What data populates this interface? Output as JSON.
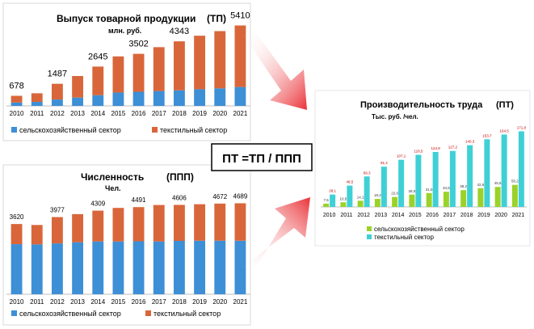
{
  "colors": {
    "blue": "#3d8fd6",
    "orange": "#d9663a",
    "green": "#9bd22a",
    "cyan": "#3fd0d6",
    "arrow": "#e8262c"
  },
  "formula": "ПТ =ТП / ППП",
  "chart_data": [
    {
      "type": "bar",
      "stacked": true,
      "title": "Выпуск товарной продукции",
      "title_abbr": "(ТП)",
      "subtitle": "млн. руб.",
      "categories": [
        "2010",
        "2011",
        "2012",
        "2013",
        "2014",
        "2015",
        "2016",
        "2017",
        "2018",
        "2019",
        "2020",
        "2021"
      ],
      "series": [
        {
          "name": "сельскохозяйственный сектор",
          "values": [
            230,
            270,
            430,
            560,
            720,
            900,
            950,
            1000,
            1050,
            1120,
            1180,
            1270
          ]
        },
        {
          "name": "текстильный сектор",
          "values": [
            448,
            578,
            1057,
            1450,
            1925,
            2430,
            2552,
            2950,
            3293,
            3600,
            3850,
            4140
          ]
        }
      ],
      "total_labels": {
        "0": "678",
        "2": "1487",
        "4": "2645",
        "6": "3502",
        "8": "4343",
        "11": "5410"
      },
      "ylim": [
        0,
        5600
      ],
      "legend": "bottom"
    },
    {
      "type": "bar",
      "stacked": true,
      "title": "Численность",
      "title_abbr": "(ППП)",
      "subtitle": "Чел.",
      "categories": [
        "2010",
        "2011",
        "2012",
        "2013",
        "2014",
        "2015",
        "2016",
        "2017",
        "2018",
        "2019",
        "2020",
        "2021"
      ],
      "series": [
        {
          "name": "сельскохозяйственный сектор",
          "values": [
            2580,
            2570,
            2620,
            2680,
            2720,
            2720,
            2730,
            2720,
            2750,
            2760,
            2760,
            2760
          ]
        },
        {
          "name": "текстильный сектор",
          "values": [
            1040,
            1000,
            1357,
            1450,
            1589,
            1730,
            1761,
            1880,
            1856,
            1880,
            1912,
            1929
          ]
        }
      ],
      "total_labels": {
        "0": "3620",
        "2": "3977",
        "4": "4309",
        "6": "4491",
        "8": "4606",
        "10": "4672",
        "11": "4689"
      },
      "ylim": [
        0,
        5000
      ],
      "legend": "bottom"
    },
    {
      "type": "bar",
      "title": "Производительность труда",
      "title_abbr": "(ПТ)",
      "subtitle": "Тыс. руб. /чел.",
      "categories": [
        "2010",
        "2011",
        "2012",
        "2013",
        "2014",
        "2015",
        "2016",
        "2017",
        "2018",
        "2019",
        "2020",
        "2021"
      ],
      "series": [
        {
          "name": "сельскохозяйственный сектор",
          "values": [
            7.5,
            10.5,
            14.1,
            18.2,
            22.6,
            28.0,
            31.5,
            34.5,
            38.2,
            42.5,
            45.5,
            50.2
          ]
        },
        {
          "name": "текстильный сектор",
          "values": [
            28.1,
            48.5,
            69.3,
            91.4,
            107.1,
            118.5,
            124.9,
            127.2,
            140.3,
            153.7,
            164.5,
            171.8
          ]
        }
      ],
      "value_labels": [
        [
          "7,5",
          "10,5",
          "14,1",
          "18,2",
          "22,6",
          "28,0",
          "31,5",
          "34,5",
          "38,2",
          "42,5",
          "45,5",
          "50,2"
        ],
        [
          "28,1",
          "48,5",
          "69,3",
          "91,4",
          "107,1",
          "118,5",
          "124,9",
          "127,2",
          "140,3",
          "153,7",
          "164,5",
          "171,8"
        ]
      ],
      "ylim": [
        0,
        180
      ],
      "legend": "bottom"
    }
  ]
}
